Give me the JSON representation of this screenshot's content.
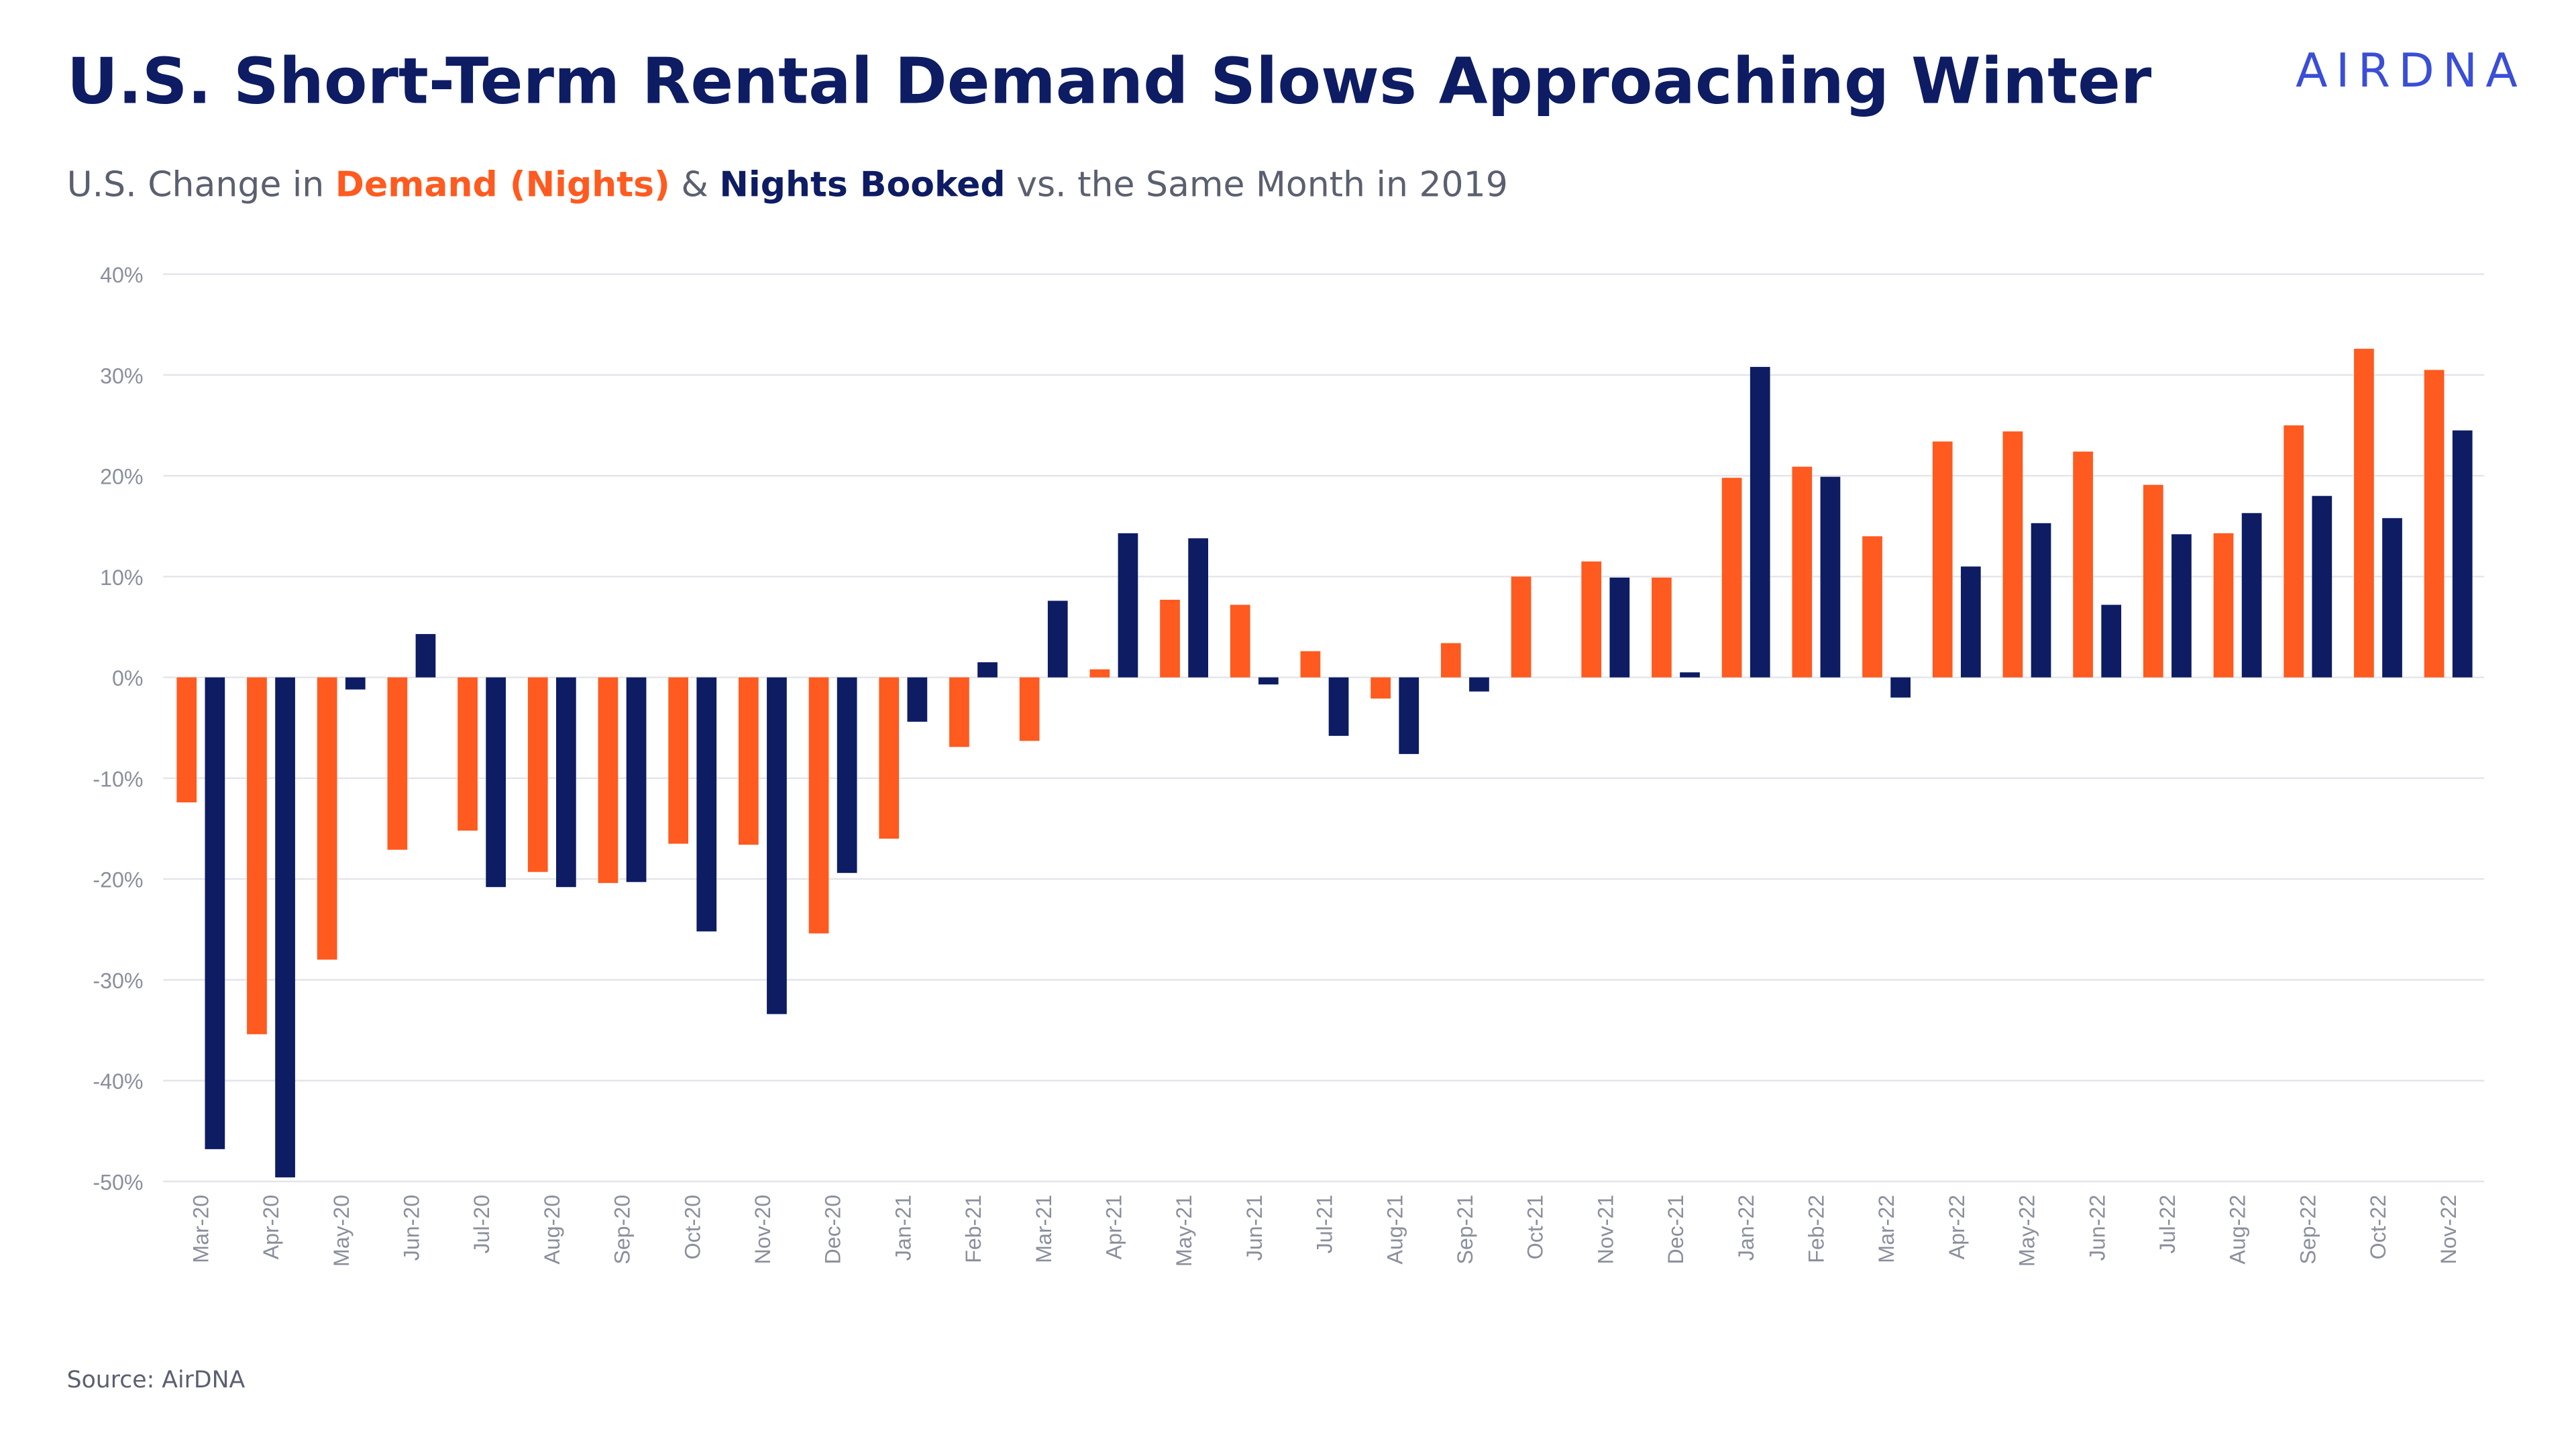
{
  "chart_data": {
    "type": "bar",
    "title": "U.S. Short-Term Rental Demand Slows Approaching Winter",
    "subtitle_parts": [
      "U.S. Change in ",
      " & ",
      " vs. the Same Month in 2019"
    ],
    "logo": "AIRDNA",
    "source": "Source: AirDNA",
    "categories": [
      "Mar-20",
      "Apr-20",
      "May-20",
      "Jun-20",
      "Jul-20",
      "Aug-20",
      "Sep-20",
      "Oct-20",
      "Nov-20",
      "Dec-20",
      "Jan-21",
      "Feb-21",
      "Mar-21",
      "Apr-21",
      "May-21",
      "Jun-21",
      "Jul-21",
      "Aug-21",
      "Sep-21",
      "Oct-21",
      "Nov-21",
      "Dec-21",
      "Jan-22",
      "Feb-22",
      "Mar-22",
      "Apr-22",
      "May-22",
      "Jun-22",
      "Jul-22",
      "Aug-22",
      "Sep-22",
      "Oct-22",
      "Nov-22"
    ],
    "series": [
      {
        "name": "Demand (Nights)",
        "color": "#ff5a1f",
        "values": [
          -12.4,
          -35.4,
          -28,
          -17.1,
          -15.2,
          -19.3,
          -20.4,
          -16.5,
          -16.6,
          -25.4,
          -16,
          -6.9,
          -6.3,
          0.8,
          7.7,
          7.2,
          2.6,
          -2.1,
          3.4,
          10,
          11.5,
          9.9,
          19.8,
          20.9,
          14,
          23.4,
          24.4,
          22.4,
          19.1,
          14.3,
          25,
          32.6,
          30.5
        ]
      },
      {
        "name": "Nights Booked",
        "color": "#0d1c63",
        "values": [
          -46.8,
          -49.6,
          -1.2,
          4.3,
          -20.8,
          -20.8,
          -20.3,
          -25.2,
          -33.4,
          -19.4,
          -4.4,
          1.5,
          7.6,
          14.3,
          13.8,
          -0.7,
          -5.8,
          -7.6,
          -1.4,
          null,
          9.9,
          0.5,
          30.8,
          19.9,
          -2,
          11,
          15.3,
          7.2,
          14.2,
          16.3,
          18,
          15.8,
          24.5
        ]
      }
    ],
    "ylim": [
      -50,
      40
    ],
    "yticks": [
      {
        "value": -50,
        "label": "-50%"
      },
      {
        "value": -40,
        "label": "-40%"
      },
      {
        "value": -30,
        "label": "-30%"
      },
      {
        "value": -20,
        "label": "-20%"
      },
      {
        "value": -10,
        "label": "-10%"
      },
      {
        "value": 0,
        "label": "0%"
      },
      {
        "value": 10,
        "label": "10%"
      },
      {
        "value": 20,
        "label": "20%"
      },
      {
        "value": 30,
        "label": "30%"
      },
      {
        "value": 40,
        "label": "40%"
      }
    ],
    "grid": true
  }
}
